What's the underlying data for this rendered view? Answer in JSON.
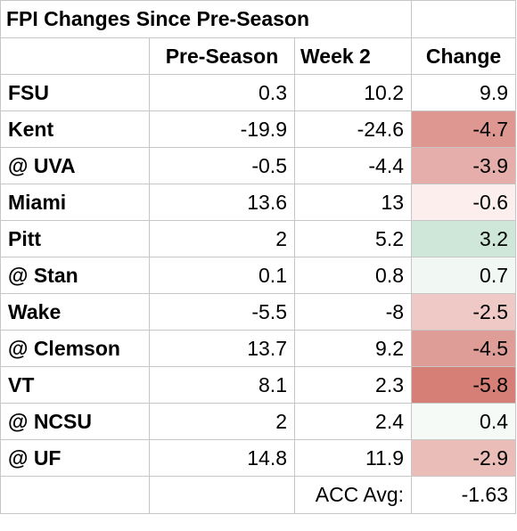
{
  "title": "FPI Changes Since Pre-Season",
  "headers": {
    "pre_season": "Pre-Season",
    "week2": "Week 2",
    "change": "Change"
  },
  "rows": [
    {
      "team": "FSU",
      "pre": "0.3",
      "week2": "10.2",
      "change": "9.9",
      "color": "#ffffff"
    },
    {
      "team": "Kent",
      "pre": "-19.9",
      "week2": "-24.6",
      "change": "-4.7",
      "color": "#df9891"
    },
    {
      "team": "@ UVA",
      "pre": "-0.5",
      "week2": "-4.4",
      "change": "-3.9",
      "color": "#e6aeaa"
    },
    {
      "team": "Miami",
      "pre": "13.6",
      "week2": "13",
      "change": "-0.6",
      "color": "#fbeeed"
    },
    {
      "team": "Pitt",
      "pre": "2",
      "week2": "5.2",
      "change": "3.2",
      "color": "#cfe7d8"
    },
    {
      "team": "@ Stan",
      "pre": "0.1",
      "week2": "0.8",
      "change": "0.7",
      "color": "#f1f8f3"
    },
    {
      "team": "Wake",
      "pre": "-5.5",
      "week2": "-8",
      "change": "-2.5",
      "color": "#efc9c6"
    },
    {
      "team": "@ Clemson",
      "pre": "13.7",
      "week2": "9.2",
      "change": "-4.5",
      "color": "#df9d97"
    },
    {
      "team": "VT",
      "pre": "8.1",
      "week2": "2.3",
      "change": "-5.8",
      "color": "#d67f76"
    },
    {
      "team": "@ NCSU",
      "pre": "2",
      "week2": "2.4",
      "change": "0.4",
      "color": "#f5faf7"
    },
    {
      "team": "@ UF",
      "pre": "14.8",
      "week2": "11.9",
      "change": "-2.9",
      "color": "#eabdb8"
    }
  ],
  "footer": {
    "label": "ACC Avg:",
    "value": "-1.63"
  }
}
